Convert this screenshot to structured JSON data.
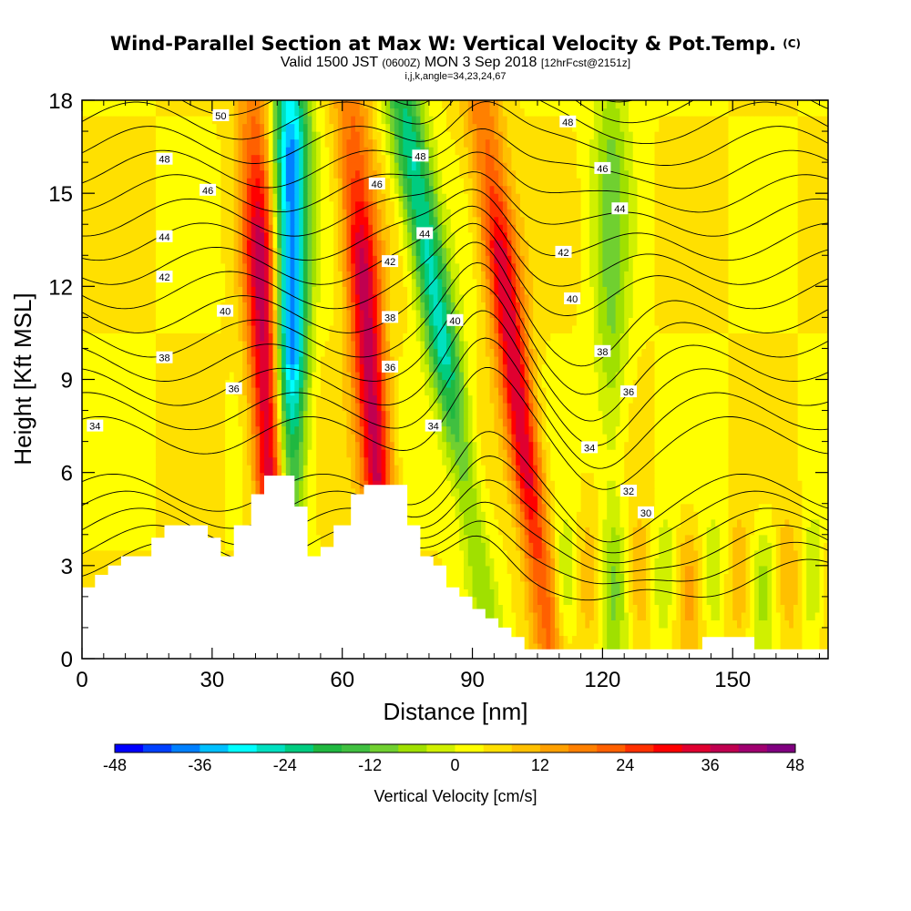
{
  "title": {
    "main": "Wind-Parallel Section at Max W: Vertical Velocity & Pot.Temp.",
    "main_tag": "(C)",
    "valid_prefix": "Valid 1500 JST",
    "valid_z": "(0600Z)",
    "valid_date": "MON 3 Sep 2018",
    "forecast": "[12hrFcst@2151z]",
    "params": "i,j,k,angle=34,23,24,67"
  },
  "chart_data": {
    "type": "heatmap",
    "xlabel": "Distance [nm]",
    "ylabel": "Height [Kft MSL]",
    "xlim": [
      0,
      172
    ],
    "ylim": [
      0,
      18
    ],
    "x_ticks": [
      "0",
      "30",
      "60",
      "90",
      "120",
      "150"
    ],
    "x_tick_values": [
      0,
      30,
      60,
      90,
      120,
      150
    ],
    "y_ticks": [
      "0",
      "3",
      "6",
      "9",
      "12",
      "15",
      "18"
    ],
    "y_tick_values": [
      0,
      3,
      6,
      9,
      12,
      15,
      18
    ],
    "colorbar": {
      "label": "Vertical Velocity [cm/s]",
      "tick_labels": [
        "-48",
        "-36",
        "-24",
        "-12",
        "0",
        "12",
        "24",
        "36",
        "48"
      ],
      "tick_values": [
        -48,
        -36,
        -24,
        -12,
        0,
        12,
        24,
        36,
        48
      ],
      "bin_width": 4,
      "colors": [
        "#0000ff",
        "#0040ff",
        "#0080ff",
        "#00c0ff",
        "#00ffff",
        "#00e0c0",
        "#00cc80",
        "#20b840",
        "#40c040",
        "#70d030",
        "#a0e000",
        "#d0f000",
        "#ffff00",
        "#ffe000",
        "#ffc000",
        "#ffa000",
        "#ff8000",
        "#ff6000",
        "#ff3000",
        "#ff0000",
        "#e00030",
        "#c00050",
        "#a00070",
        "#800080"
      ]
    },
    "velocity_features": [
      {
        "kind": "updraft",
        "x_bottom": 45,
        "x_top": 40,
        "strength": 36
      },
      {
        "kind": "downdraft",
        "x_bottom": 48,
        "x_top": 48,
        "strength": -44
      },
      {
        "kind": "updraft",
        "x_bottom": 71,
        "x_top": 62,
        "strength": 34
      },
      {
        "kind": "downdraft",
        "x_bottom": 95,
        "x_top": 74,
        "strength": -30
      },
      {
        "kind": "updraft",
        "x_bottom": 108,
        "x_top": 92,
        "strength": 32
      },
      {
        "kind": "downdraft",
        "x_bottom": 122,
        "x_top": 122,
        "strength": -12
      }
    ],
    "theta_contours": [
      {
        "level": 30,
        "label": "30"
      },
      {
        "level": 32,
        "label": "32"
      },
      {
        "level": 34,
        "label": "34"
      },
      {
        "level": 36,
        "label": "36"
      },
      {
        "level": 38,
        "label": "38"
      },
      {
        "level": 40,
        "label": "40"
      },
      {
        "level": 42,
        "label": "42"
      },
      {
        "level": 44,
        "label": "44"
      },
      {
        "level": 46,
        "label": "46"
      },
      {
        "level": 48,
        "label": "48"
      },
      {
        "level": 50,
        "label": "50"
      }
    ],
    "contour_labels": [
      {
        "text": "50",
        "x": 32,
        "y": 17.5
      },
      {
        "text": "48",
        "x": 19,
        "y": 16.1
      },
      {
        "text": "48",
        "x": 78,
        "y": 16.2
      },
      {
        "text": "48",
        "x": 112,
        "y": 17.3
      },
      {
        "text": "46",
        "x": 29,
        "y": 15.1
      },
      {
        "text": "46",
        "x": 68,
        "y": 15.3
      },
      {
        "text": "46",
        "x": 120,
        "y": 15.8
      },
      {
        "text": "44",
        "x": 19,
        "y": 13.6
      },
      {
        "text": "44",
        "x": 79,
        "y": 13.7
      },
      {
        "text": "44",
        "x": 124,
        "y": 14.5
      },
      {
        "text": "42",
        "x": 19,
        "y": 12.3
      },
      {
        "text": "42",
        "x": 71,
        "y": 12.8
      },
      {
        "text": "42",
        "x": 111,
        "y": 13.1
      },
      {
        "text": "40",
        "x": 33,
        "y": 11.2
      },
      {
        "text": "40",
        "x": 86,
        "y": 10.9
      },
      {
        "text": "40",
        "x": 113,
        "y": 11.6
      },
      {
        "text": "38",
        "x": 19,
        "y": 9.7
      },
      {
        "text": "38",
        "x": 71,
        "y": 11.0
      },
      {
        "text": "38",
        "x": 120,
        "y": 9.9
      },
      {
        "text": "36",
        "x": 35,
        "y": 8.7
      },
      {
        "text": "36",
        "x": 71,
        "y": 9.4
      },
      {
        "text": "36",
        "x": 126,
        "y": 8.6
      },
      {
        "text": "34",
        "x": 3,
        "y": 7.5
      },
      {
        "text": "34",
        "x": 81,
        "y": 7.5
      },
      {
        "text": "34",
        "x": 117,
        "y": 6.8
      },
      {
        "text": "32",
        "x": 126,
        "y": 5.4
      },
      {
        "text": "30",
        "x": 130,
        "y": 4.7
      }
    ],
    "terrain": [
      [
        0,
        2.3
      ],
      [
        3,
        2.3
      ],
      [
        3,
        2.7
      ],
      [
        6,
        2.7
      ],
      [
        6,
        3.0
      ],
      [
        9,
        3.0
      ],
      [
        9,
        3.3
      ],
      [
        16,
        3.3
      ],
      [
        16,
        3.9
      ],
      [
        19,
        3.9
      ],
      [
        19,
        4.3
      ],
      [
        29,
        4.3
      ],
      [
        29,
        3.9
      ],
      [
        32,
        3.9
      ],
      [
        32,
        3.3
      ],
      [
        35,
        3.3
      ],
      [
        35,
        4.3
      ],
      [
        39,
        4.3
      ],
      [
        39,
        5.3
      ],
      [
        42,
        5.3
      ],
      [
        42,
        5.9
      ],
      [
        49,
        5.9
      ],
      [
        49,
        4.9
      ],
      [
        52,
        4.9
      ],
      [
        52,
        3.3
      ],
      [
        55,
        3.3
      ],
      [
        55,
        3.6
      ],
      [
        58,
        3.6
      ],
      [
        58,
        4.3
      ],
      [
        62,
        4.3
      ],
      [
        62,
        5.3
      ],
      [
        65,
        5.3
      ],
      [
        65,
        5.6
      ],
      [
        75,
        5.6
      ],
      [
        75,
        4.3
      ],
      [
        78,
        4.3
      ],
      [
        78,
        3.3
      ],
      [
        81,
        3.3
      ],
      [
        81,
        3.0
      ],
      [
        84,
        3.0
      ],
      [
        84,
        2.3
      ],
      [
        87,
        2.3
      ],
      [
        87,
        2.0
      ],
      [
        90,
        2.0
      ],
      [
        90,
        1.6
      ],
      [
        93,
        1.6
      ],
      [
        93,
        1.3
      ],
      [
        96,
        1.3
      ],
      [
        96,
        1.0
      ],
      [
        99,
        1.0
      ],
      [
        99,
        0.7
      ],
      [
        102,
        0.7
      ],
      [
        102,
        0.3
      ],
      [
        143,
        0.3
      ],
      [
        143,
        0.7
      ],
      [
        155,
        0.7
      ],
      [
        155,
        0.3
      ],
      [
        172,
        0.3
      ]
    ]
  }
}
